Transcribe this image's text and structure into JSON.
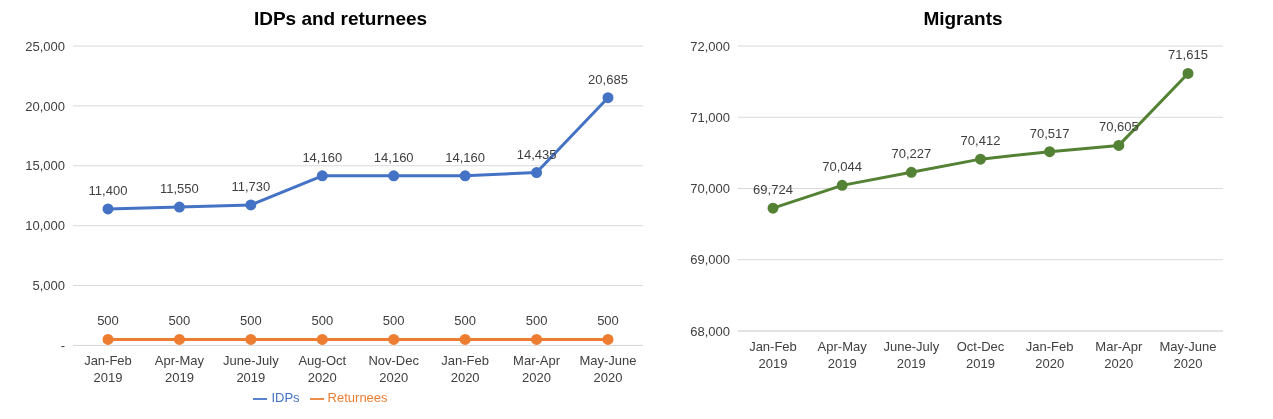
{
  "chart_data": [
    {
      "type": "line",
      "title": "IDPs and returnees",
      "categories": [
        "Jan-Feb 2019",
        "Apr-May 2019",
        "June-July 2019",
        "Aug-Oct 2020",
        "Nov-Dec 2020",
        "Jan-Feb 2020",
        "Mar-Apr 2020",
        "May-June 2020"
      ],
      "series": [
        {
          "name": "IDPs",
          "color": "#4472c4",
          "values": [
            11400,
            11550,
            11730,
            14160,
            14160,
            14160,
            14435,
            20685
          ],
          "value_labels": [
            "11,400",
            "11,550",
            "11,730",
            "14,160",
            "14,160",
            "14,160",
            "14,435",
            "20,685"
          ]
        },
        {
          "name": "Returnees",
          "color": "#ed7d31",
          "values": [
            500,
            500,
            500,
            500,
            500,
            500,
            500,
            500
          ],
          "value_labels": [
            "500",
            "500",
            "500",
            "500",
            "500",
            "500",
            "500",
            "500"
          ]
        }
      ],
      "ylim": [
        0,
        25000
      ],
      "yticks": [
        {
          "value": 0,
          "label": "-"
        },
        {
          "value": 5000,
          "label": "5,000"
        },
        {
          "value": 10000,
          "label": "10,000"
        },
        {
          "value": 15000,
          "label": "15,000"
        },
        {
          "value": 20000,
          "label": "20,000"
        },
        {
          "value": 25000,
          "label": "25,000"
        }
      ],
      "grid": "y",
      "legend": "bottom",
      "marker": "circle"
    },
    {
      "type": "line",
      "title": "Migrants",
      "categories": [
        "Jan-Feb 2019",
        "Apr-May 2019",
        "June-July 2019",
        "Oct-Dec 2019",
        "Jan-Feb 2020",
        "Mar-Apr 2020",
        "May-June 2020"
      ],
      "series": [
        {
          "color": "#548235",
          "values": [
            69724,
            70044,
            70227,
            70412,
            70517,
            70605,
            71615
          ],
          "value_labels": [
            "69,724",
            "70,044",
            "70,227",
            "70,412",
            "70,517",
            "70,605",
            "71,615"
          ]
        }
      ],
      "ylim": [
        68000,
        72000
      ],
      "yticks": [
        {
          "value": 68000,
          "label": "68,000"
        },
        {
          "value": 69000,
          "label": "69,000"
        },
        {
          "value": 70000,
          "label": "70,000"
        },
        {
          "value": 71000,
          "label": "71,000"
        },
        {
          "value": 72000,
          "label": "72,000"
        }
      ],
      "grid": "y",
      "marker": "circle"
    }
  ]
}
